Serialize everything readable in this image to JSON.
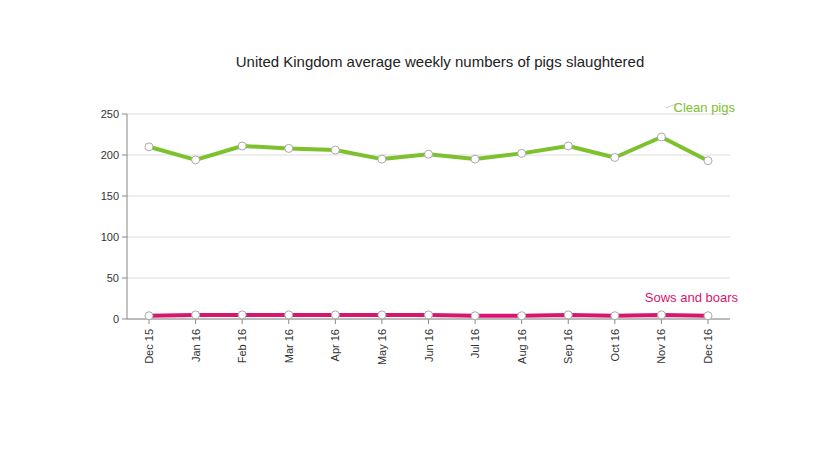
{
  "chart_data": {
    "type": "line",
    "title": "United Kingdom average weekly numbers of pigs slaughtered",
    "categories": [
      "Dec 15",
      "Jan 16",
      "Feb 16",
      "Mar 16",
      "Apr 16",
      "May 16",
      "Jun 16",
      "Jul 16",
      "Aug 16",
      "Sep 16",
      "Oct 16",
      "Nov 16",
      "Dec 16"
    ],
    "series": [
      {
        "name": "Clean pigs",
        "color": "#7dc12f",
        "values": [
          210,
          194,
          211,
          208,
          206,
          195,
          201,
          195,
          202,
          211,
          197,
          222,
          193
        ]
      },
      {
        "name": "Sows and boars",
        "color": "#d6166f",
        "values": [
          4,
          5,
          5,
          5,
          5,
          5,
          5,
          4,
          4,
          5,
          4,
          5,
          4
        ]
      }
    ],
    "ylim": [
      0,
      250
    ],
    "yticks": [
      0,
      50,
      100,
      150,
      200,
      250
    ],
    "grid": true,
    "marker": "circle"
  }
}
